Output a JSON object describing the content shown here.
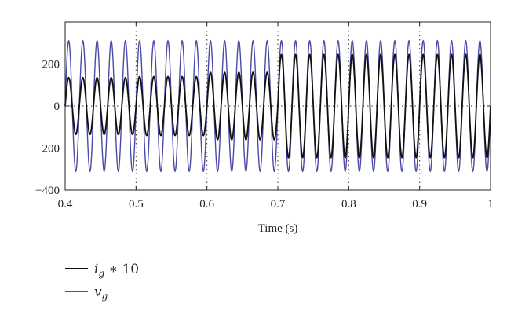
{
  "chart_data": {
    "type": "line",
    "xlabel": "Time (s)",
    "ylabel": "",
    "xlim": [
      0.4,
      1.0
    ],
    "ylim": [
      -400,
      400
    ],
    "x_ticks": [
      "0.4",
      "0.5",
      "0.6",
      "0.7",
      "0.8",
      "0.9",
      "1"
    ],
    "y_ticks": [
      "200",
      "0",
      "−200",
      "−400"
    ],
    "grid": true,
    "legend_position": "bottom-left",
    "frequency_hz": 50,
    "series": [
      {
        "name": "i_g * 10",
        "legend_main": "i",
        "legend_sub": "g",
        "legend_tail": " ∗ 10",
        "color": "#111111",
        "waveform": "sine",
        "amplitude_segments": [
          {
            "x": [
              0.4,
              0.5
            ],
            "amplitude": 135
          },
          {
            "x": [
              0.5,
              0.6
            ],
            "amplitude": 140
          },
          {
            "x": [
              0.6,
              0.7
            ],
            "amplitude": 160
          },
          {
            "x": [
              0.7,
              1.0
            ],
            "amplitude": 245
          }
        ]
      },
      {
        "name": "v_g",
        "legend_main": "v",
        "legend_sub": "g",
        "legend_tail": "",
        "color": "#4a4aa8",
        "waveform": "sine",
        "amplitude_segments": [
          {
            "x": [
              0.4,
              1.0
            ],
            "amplitude": 311
          }
        ]
      }
    ]
  }
}
